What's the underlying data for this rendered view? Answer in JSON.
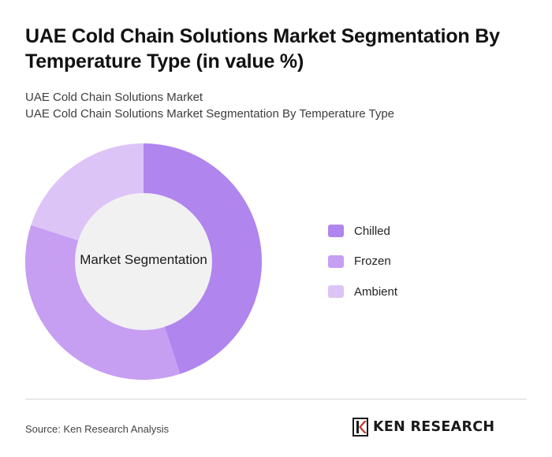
{
  "header": {
    "title": "UAE Cold Chain Solutions Market Segmentation By Temperature Type (in value %)",
    "subtitle_line1": "UAE Cold Chain Solutions Market",
    "subtitle_line2": "UAE Cold Chain Solutions Market Segmentation By Temperature Type"
  },
  "chart_data": {
    "type": "pie",
    "variant": "donut",
    "center_label": "Market Segmentation",
    "categories": [
      "Chilled",
      "Frozen",
      "Ambient"
    ],
    "values": [
      45,
      35,
      20
    ],
    "colors": [
      "#b085ee",
      "#c69ef2",
      "#ddc4f7"
    ],
    "hole_color": "#f1f1f1",
    "legend_position": "right"
  },
  "footer": {
    "source": "Source: Ken Research Analysis",
    "brand": "KEN RESEARCH"
  }
}
